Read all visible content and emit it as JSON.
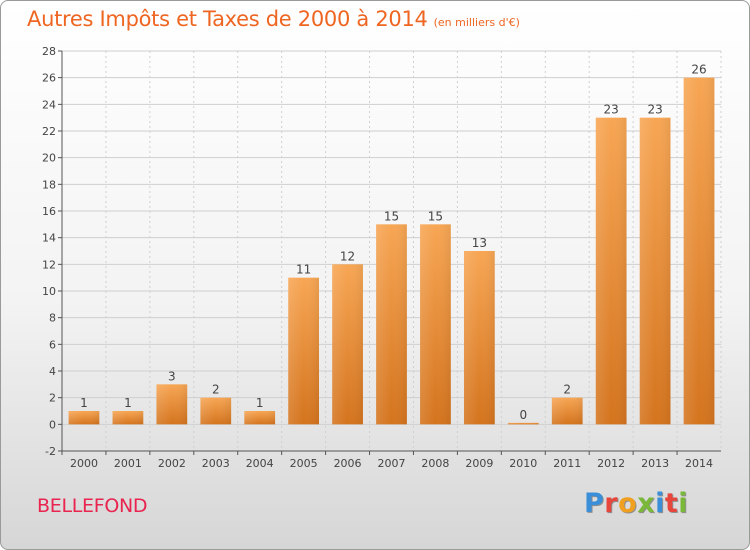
{
  "header": {
    "title": "Autres Impôts et Taxes de 2000 à 2014",
    "subtitle": "(en milliers d'€)"
  },
  "footer": {
    "commune": "BELLEFOND",
    "logo_letters": [
      {
        "ch": "P",
        "color": "#3a8fd8"
      },
      {
        "ch": "r",
        "color": "#e7463c"
      },
      {
        "ch": "o",
        "color": "#f0a020"
      },
      {
        "ch": "x",
        "color": "#7ab83a"
      },
      {
        "ch": "i",
        "color": "#3a8fd8"
      },
      {
        "ch": "t",
        "color": "#e7463c"
      },
      {
        "ch": "i",
        "color": "#7ab83a"
      }
    ]
  },
  "colors": {
    "title": "#ee6622",
    "commune": "#e8244f",
    "bar_light": "#f7a654",
    "bar_dark": "#d4741e",
    "axis": "#555555",
    "grid": "#cfcfcf"
  },
  "chart_data": {
    "type": "bar",
    "title": "Autres Impôts et Taxes de 2000 à 2014",
    "subtitle": "(en milliers d'€)",
    "categories": [
      "2000",
      "2001",
      "2002",
      "2003",
      "2004",
      "2005",
      "2006",
      "2007",
      "2008",
      "2009",
      "2010",
      "2011",
      "2012",
      "2013",
      "2014"
    ],
    "values": [
      1,
      1,
      3,
      2,
      1,
      11,
      12,
      15,
      15,
      13,
      0,
      2,
      23,
      23,
      26
    ],
    "ylim": [
      -2,
      28
    ],
    "yticks": [
      -2,
      0,
      2,
      4,
      6,
      8,
      10,
      12,
      14,
      16,
      18,
      20,
      22,
      24,
      26,
      28
    ],
    "grid": true,
    "legend": "none"
  }
}
